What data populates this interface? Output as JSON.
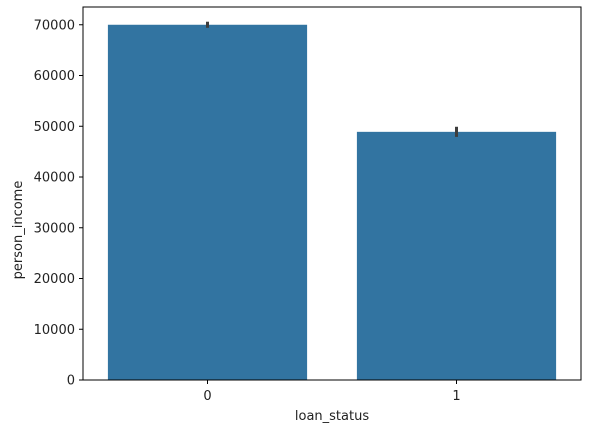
{
  "chart_data": {
    "type": "bar",
    "categories": [
      "0",
      "1"
    ],
    "values": [
      70000,
      48900
    ],
    "error_bars": [
      [
        69400,
        70600
      ],
      [
        47900,
        49900
      ]
    ],
    "xlabel": "loan_status",
    "ylabel": "person_income",
    "ylim": [
      0,
      73500
    ],
    "yticks": [
      0,
      10000,
      20000,
      30000,
      40000,
      50000,
      60000,
      70000
    ],
    "grid": false,
    "bar_color": "#3274a1",
    "errorbar_color": "#3d3d3d"
  }
}
